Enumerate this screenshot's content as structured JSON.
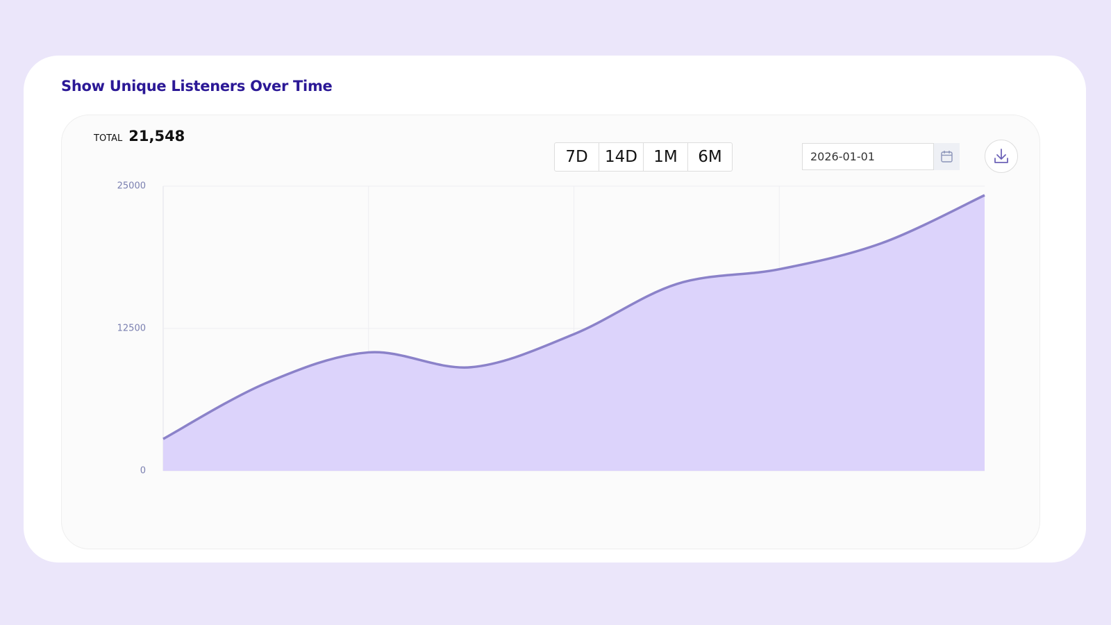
{
  "header": {
    "title": "Show Unique Listeners Over Time"
  },
  "summary": {
    "label": "TOTAL",
    "value": "21,548"
  },
  "ranges": [
    "7D",
    "14D",
    "1M",
    "6M"
  ],
  "date": "2026-01-01",
  "chart_data": {
    "type": "area",
    "values": [
      2800,
      7700,
      10400,
      9100,
      12000,
      16400,
      17700,
      20000,
      24200
    ],
    "color": "#8b82c9",
    "fill": "#dcd3fb",
    "ylim": [
      0,
      25000
    ],
    "yticks": [
      0,
      12500,
      25000
    ],
    "grid": true
  }
}
